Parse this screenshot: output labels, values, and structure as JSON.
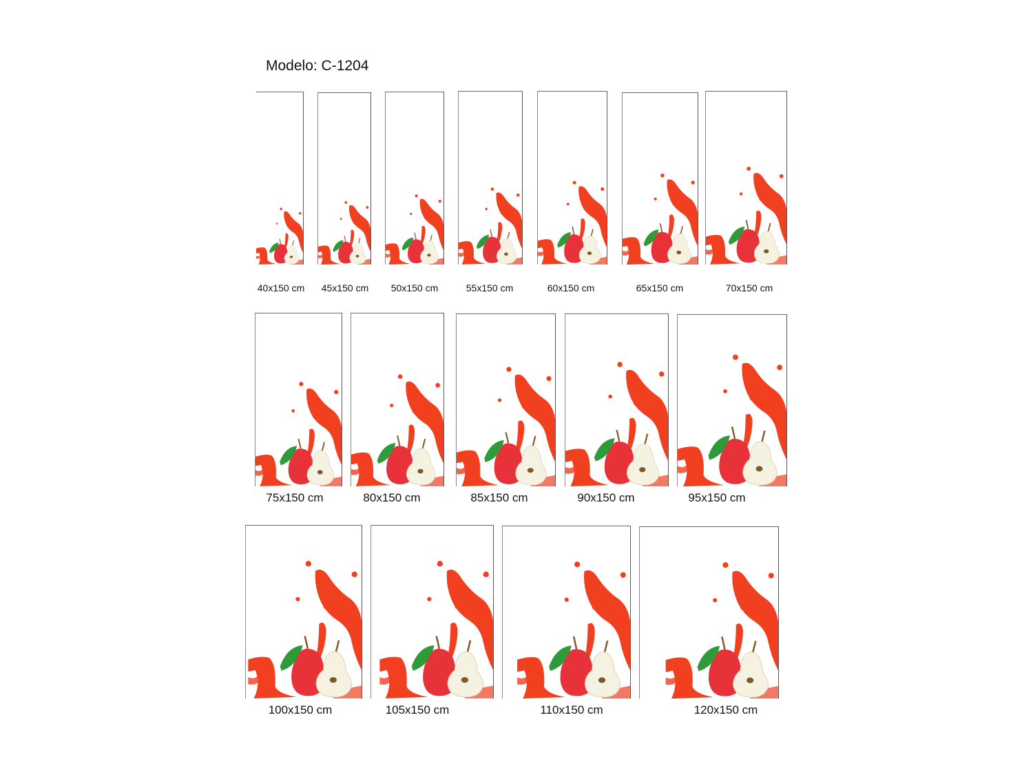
{
  "title": "Modelo: C-1204",
  "colors": {
    "splash": "#f0401f",
    "apple": "#e8323a",
    "pear_flesh": "#f6f2e2",
    "leaf": "#2f9a3a"
  },
  "sizes": [
    "40x150 cm",
    "45x150 cm",
    "50x150 cm",
    "55x150 cm",
    "60x150 cm",
    "65x150 cm",
    "70x150 cm",
    "75x150 cm",
    "80x150 cm",
    "85x150 cm",
    "90x150 cm",
    "95x150 cm",
    "100x150 cm",
    "105x150 cm",
    "110x150 cm",
    "120x150 cm"
  ]
}
